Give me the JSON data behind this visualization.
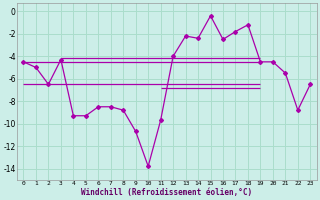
{
  "xlabel": "Windchill (Refroidissement éolien,°C)",
  "bg_color": "#cceee8",
  "grid_color": "#aaddcc",
  "line_color": "#aa00aa",
  "xlim": [
    -0.5,
    23.5
  ],
  "ylim": [
    -15.0,
    0.7
  ],
  "xticks": [
    0,
    1,
    2,
    3,
    4,
    5,
    6,
    7,
    8,
    9,
    10,
    11,
    12,
    13,
    14,
    15,
    16,
    17,
    18,
    19,
    20,
    21,
    22,
    23
  ],
  "yticks": [
    0,
    -2,
    -4,
    -6,
    -8,
    -10,
    -12,
    -14
  ],
  "hours": [
    0,
    1,
    2,
    3,
    4,
    5,
    6,
    7,
    8,
    9,
    10,
    11,
    12,
    13,
    14,
    15,
    16,
    17,
    18,
    19,
    20,
    21,
    22,
    23
  ],
  "windchill": [
    -4.5,
    -5.0,
    -6.5,
    -4.3,
    -9.3,
    -9.3,
    -8.5,
    -8.5,
    -8.8,
    -10.7,
    -13.8,
    -9.7,
    -4.0,
    -2.2,
    -2.4,
    -0.4,
    -2.5,
    -1.8,
    -1.2,
    -4.5,
    -4.5,
    -5.5,
    -8.8,
    -6.5
  ],
  "ref_lines": [
    {
      "y": -4.5,
      "x0": 0,
      "x1": 19
    },
    {
      "y": -4.2,
      "x0": 3,
      "x1": 19
    },
    {
      "y": -6.5,
      "x0": 2,
      "x1": 19
    },
    {
      "y": -6.5,
      "x0": 11,
      "x1": 19
    }
  ]
}
